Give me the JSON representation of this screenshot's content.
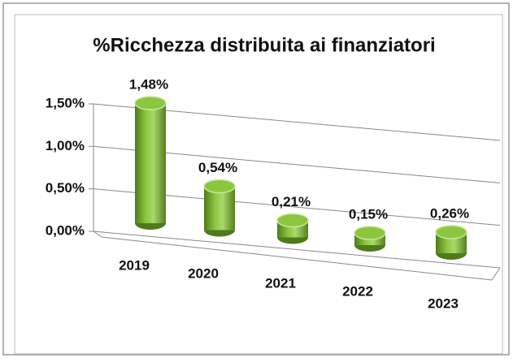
{
  "chart_data": {
    "type": "bar",
    "title": "%Ricchezza distribuita ai finanziatori",
    "categories": [
      "2019",
      "2020",
      "2021",
      "2022",
      "2023"
    ],
    "values": [
      1.48,
      0.54,
      0.21,
      0.15,
      0.26
    ],
    "value_labels": [
      "1,48%",
      "0,54%",
      "0,21%",
      "0,15%",
      "0,26%"
    ],
    "color": "#8cc63f",
    "ylim": [
      0,
      1.5
    ],
    "yticks": [
      {
        "value": 0,
        "label": "0,00%"
      },
      {
        "value": 0.5,
        "label": "0,50%"
      },
      {
        "value": 1,
        "label": "1,00%"
      },
      {
        "value": 1.5,
        "label": "1,50%"
      }
    ],
    "grid": true
  }
}
